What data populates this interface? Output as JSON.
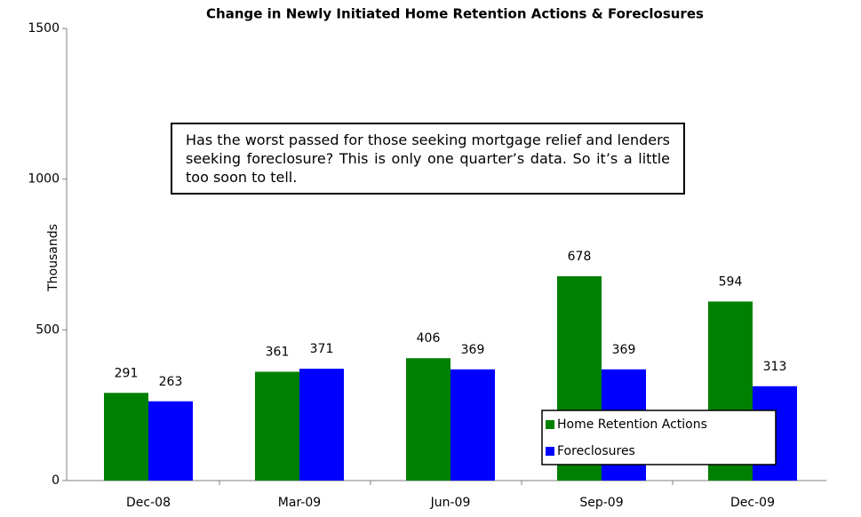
{
  "chart_data": {
    "type": "bar",
    "title": "Change in Newly Initiated Home Retention Actions & Foreclosures",
    "y_label": "Thousands",
    "annotation": "Has the worst passed for those seeking mortgage relief and lenders seeking foreclosure? This is only one quarter’s data. So it’s a little too soon to tell.",
    "categories": [
      "Dec-08",
      "Mar-09",
      "Jun-09",
      "Sep-09",
      "Dec-09"
    ],
    "series": [
      {
        "name": "Home Retention Actions",
        "color": "#008000",
        "values": [
          291,
          361,
          406,
          678,
          594
        ]
      },
      {
        "name": "Foreclosures",
        "color": "#0000ff",
        "values": [
          263,
          371,
          369,
          369,
          313
        ]
      }
    ],
    "ylim": [
      0,
      1500
    ],
    "yticks": [
      0,
      500,
      1000,
      1500
    ],
    "grid": false
  }
}
